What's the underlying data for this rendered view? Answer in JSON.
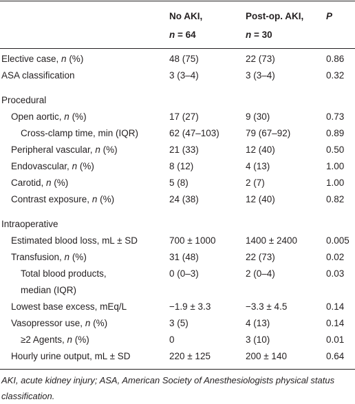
{
  "table": {
    "columns": [
      {
        "lines": [
          [
            "No AKI,"
          ],
          [
            {
              "italic": "n"
            },
            " = 64"
          ]
        ]
      },
      {
        "lines": [
          [
            "Post-op. AKI,"
          ],
          [
            {
              "italic": "n"
            },
            " = 30"
          ]
        ]
      },
      {
        "lines": [
          [
            {
              "italic": "P"
            }
          ]
        ]
      }
    ],
    "groups": [
      {
        "rows": [
          {
            "label": [
              [
                "Elective case, ",
                {
                  "italic": "n"
                },
                " (%)"
              ]
            ],
            "values": [
              "48 (75)",
              "22 (73)",
              "0.86"
            ]
          },
          {
            "label": [
              [
                "ASA classification"
              ]
            ],
            "values": [
              "3 (3–4)",
              "3 (3–4)",
              "0.32"
            ]
          }
        ]
      },
      {
        "title": "Procedural",
        "rows": [
          {
            "label": [
              [
                "Open aortic, ",
                {
                  "italic": "n"
                },
                " (%)"
              ]
            ],
            "values": [
              "17 (27)",
              "9 (30)",
              "0.73"
            ],
            "children": [
              {
                "label": [
                  [
                    "Cross-clamp time, min (IQR)"
                  ]
                ],
                "values": [
                  "62 (47–103)",
                  "79 (67–92)",
                  "0.89"
                ]
              }
            ]
          },
          {
            "label": [
              [
                "Peripheral vascular, ",
                {
                  "italic": "n"
                },
                " (%)"
              ]
            ],
            "values": [
              "21 (33)",
              "12 (40)",
              "0.50"
            ]
          },
          {
            "label": [
              [
                "Endovascular, ",
                {
                  "italic": "n"
                },
                " (%)"
              ]
            ],
            "values": [
              "8 (12)",
              "4 (13)",
              "1.00"
            ]
          },
          {
            "label": [
              [
                "Carotid, ",
                {
                  "italic": "n"
                },
                " (%)"
              ]
            ],
            "values": [
              "5 (8)",
              "2 (7)",
              "1.00"
            ]
          },
          {
            "label": [
              [
                "Contrast exposure, ",
                {
                  "italic": "n"
                },
                " (%)"
              ]
            ],
            "values": [
              "24 (38)",
              "12 (40)",
              "0.82"
            ]
          }
        ]
      },
      {
        "title": "Intraoperative",
        "rows": [
          {
            "label": [
              [
                "Estimated blood loss, mL ± SD"
              ]
            ],
            "values": [
              "700 ± 1000",
              "1400 ± 2400",
              "0.005"
            ]
          },
          {
            "label": [
              [
                "Transfusion, ",
                {
                  "italic": "n"
                },
                " (%)"
              ]
            ],
            "values": [
              "31 (48)",
              "22 (73)",
              "0.02"
            ],
            "children": [
              {
                "label": [
                  [
                    "Total blood products,"
                  ],
                  [
                    "median (IQR)"
                  ]
                ],
                "values": [
                  "0 (0–3)",
                  "2 (0–4)",
                  "0.03"
                ]
              }
            ]
          },
          {
            "label": [
              [
                "Lowest base excess, mEq/L"
              ]
            ],
            "values": [
              "−1.9 ± 3.3",
              "−3.3 ± 4.5",
              "0.14"
            ]
          },
          {
            "label": [
              [
                "Vasopressor use, ",
                {
                  "italic": "n"
                },
                " (%)"
              ]
            ],
            "values": [
              "3 (5)",
              "4 (13)",
              "0.14"
            ],
            "children": [
              {
                "label": [
                  [
                    "≥2 Agents, ",
                    {
                      "italic": "n"
                    },
                    " (%)"
                  ]
                ],
                "values": [
                  "0",
                  "3 (10)",
                  "0.01"
                ]
              }
            ]
          },
          {
            "label": [
              [
                "Hourly urine output, mL ± SD"
              ]
            ],
            "values": [
              "220 ± 125",
              "200 ± 140",
              "0.64"
            ]
          }
        ]
      }
    ],
    "footnote": "AKI, acute kidney injury; ASA, American Society of Anesthesiologists physical status classification."
  }
}
